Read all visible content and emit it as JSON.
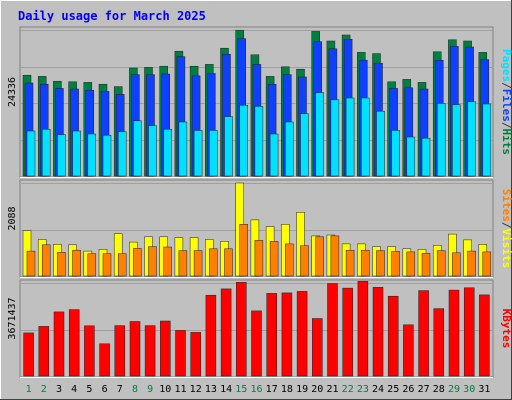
{
  "chart_data": {
    "type": "bar",
    "title": "Daily usage for March 2025",
    "days": [
      1,
      2,
      3,
      4,
      5,
      6,
      7,
      8,
      9,
      10,
      11,
      12,
      13,
      14,
      15,
      16,
      17,
      18,
      19,
      20,
      21,
      22,
      23,
      24,
      25,
      26,
      27,
      28,
      29,
      30,
      31
    ],
    "weekend_days": [
      1,
      2,
      8,
      9,
      15,
      16,
      22,
      23,
      29,
      30
    ],
    "panels": [
      {
        "id": "hits-files-pages",
        "ymax_label": "24336",
        "ymax": 24336,
        "legend": [
          "Pages",
          "/",
          "Files",
          "/",
          "Hits"
        ],
        "legend_colors": [
          "#00e0ff",
          "#404040",
          "#1040ff",
          "#404040",
          "#008040"
        ],
        "series": [
          {
            "name": "Hits",
            "color": "#008040",
            "values": [
              16800,
              16600,
              15800,
              15700,
              15600,
              15300,
              14900,
              18000,
              18100,
              18300,
              20800,
              18300,
              18600,
              21300,
              24300,
              20200,
              16600,
              18200,
              17800,
              24100,
              22500,
              23500,
              20600,
              20400,
              15700,
              16100,
              15600,
              20700,
              22700,
              22500,
              20600
            ]
          },
          {
            "name": "Files",
            "color": "#1040ff",
            "values": [
              15500,
              15300,
              14600,
              14500,
              14300,
              14100,
              13600,
              16900,
              16900,
              17000,
              19900,
              16700,
              17100,
              20300,
              22900,
              18600,
              15300,
              16900,
              16500,
              22400,
              21200,
              22800,
              19300,
              18800,
              14600,
              14700,
              14500,
              19300,
              21600,
              21500,
              19400
            ]
          },
          {
            "name": "Pages",
            "color": "#00e0ff",
            "values": [
              7500,
              7800,
              6900,
              7500,
              7000,
              6800,
              7400,
              9200,
              8400,
              7800,
              9000,
              7600,
              7600,
              9900,
              11800,
              11600,
              7000,
              9000,
              10400,
              13900,
              12700,
              13000,
              13000,
              10800,
              7600,
              6500,
              6300,
              12100,
              11900,
              12400,
              12000
            ]
          }
        ]
      },
      {
        "id": "visits-sites",
        "ymax_label": "2088",
        "ymax": 2088,
        "legend": [
          "Sites",
          "/",
          "Visits"
        ],
        "legend_colors": [
          "#ff8000",
          "#404040",
          "#ffff00"
        ],
        "series": [
          {
            "name": "Visits",
            "color": "#ffff00",
            "values": [
              1020,
              820,
              710,
              700,
              560,
              600,
              950,
              760,
              880,
              880,
              860,
              860,
              820,
              780,
              2088,
              1260,
              1110,
              1160,
              1430,
              900,
              920,
              720,
              720,
              660,
              660,
              610,
              600,
              690,
              940,
              810,
              710
            ]
          },
          {
            "name": "Sites",
            "color": "#ff8000",
            "values": [
              560,
              700,
              530,
              580,
              500,
              500,
              500,
              620,
              660,
              650,
              570,
              570,
              610,
              610,
              1160,
              800,
              780,
              720,
              680,
              880,
              900,
              580,
              580,
              570,
              550,
              540,
              510,
              570,
              520,
              560,
              540
            ]
          }
        ]
      },
      {
        "id": "kbytes",
        "ymax_label": "3671437",
        "ymax": 3671437,
        "legend": [
          "KBytes"
        ],
        "legend_colors": [
          "#ff0000"
        ],
        "series": [
          {
            "name": "KBytes",
            "color": "#ff0000",
            "values": [
              1700000,
              1960000,
              2530000,
              2620000,
              1980000,
              1270000,
              1990000,
              2150000,
              1990000,
              2170000,
              1800000,
              1720000,
              3190000,
              3440000,
              3700000,
              2570000,
              3260000,
              3280000,
              3340000,
              2270000,
              3650000,
              3470000,
              3740000,
              3500000,
              3150000,
              2020000,
              3370000,
              2660000,
              3390000,
              3480000,
              3200000
            ]
          }
        ]
      }
    ]
  }
}
